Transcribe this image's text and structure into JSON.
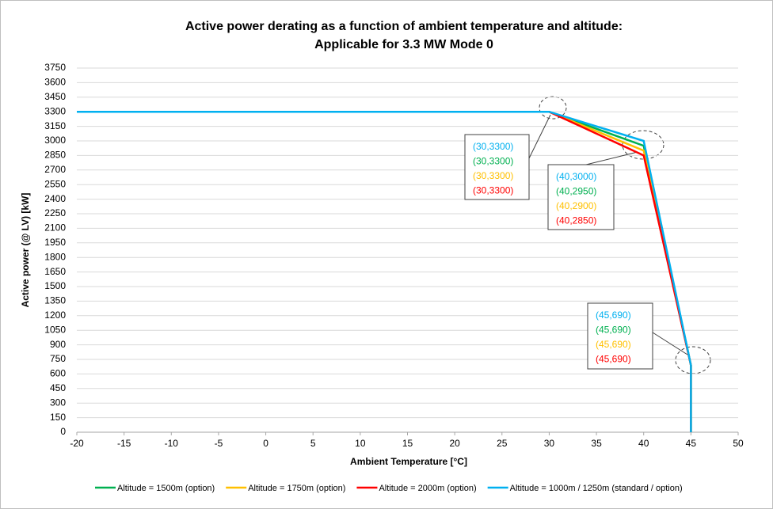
{
  "chart_data": {
    "type": "line",
    "title": [
      "Active power derating as a function of ambient temperature and altitude:",
      "Applicable for 3.3 MW Mode 0"
    ],
    "x_label": "Ambient Temperature [°C]",
    "y_label": "Active power (@ LV) [kW]",
    "xlim": [
      -20,
      50
    ],
    "xticks": [
      -20,
      -15,
      -10,
      -5,
      0,
      5,
      10,
      15,
      20,
      25,
      30,
      35,
      40,
      45,
      50
    ],
    "ylim": [
      0,
      3750
    ],
    "yticks": [
      0,
      150,
      300,
      450,
      600,
      750,
      900,
      1050,
      1200,
      1350,
      1500,
      1650,
      1800,
      1950,
      2100,
      2250,
      2400,
      2550,
      2700,
      2850,
      3000,
      3150,
      3300,
      3450,
      3600,
      3750
    ],
    "grid": true,
    "legend": "bottom",
    "series": [
      {
        "name": "Altitude = 1500m (option)",
        "color": "#00b050",
        "x": [
          -20,
          30,
          40,
          45,
          45
        ],
        "values": [
          3300,
          3300,
          2950,
          690,
          0
        ]
      },
      {
        "name": "Altitude = 1750m (option)",
        "color": "#ffc000",
        "x": [
          -20,
          30,
          40,
          45,
          45
        ],
        "values": [
          3300,
          3300,
          2900,
          690,
          0
        ]
      },
      {
        "name": "Altitude = 2000m (option)",
        "color": "#ff0000",
        "x": [
          -20,
          30,
          40,
          45,
          45
        ],
        "values": [
          3300,
          3300,
          2850,
          690,
          0
        ]
      },
      {
        "name": "Altitude = 1000m / 1250m (standard / option)",
        "color": "#00b0f0",
        "x": [
          -20,
          30,
          40,
          45,
          45
        ],
        "values": [
          3300,
          3300,
          3000,
          690,
          0
        ]
      }
    ],
    "annotations": [
      {
        "lines": [
          {
            "text": "(30,3300)",
            "color": "#00b0f0"
          },
          {
            "text": "(30,3300)",
            "color": "#00b050"
          },
          {
            "text": "(30,3300)",
            "color": "#ffc000"
          },
          {
            "text": "(30,3300)",
            "color": "#ff0000"
          }
        ]
      },
      {
        "lines": [
          {
            "text": "(40,3000)",
            "color": "#00b0f0"
          },
          {
            "text": "(40,2950)",
            "color": "#00b050"
          },
          {
            "text": "(40,2900)",
            "color": "#ffc000"
          },
          {
            "text": "(40,2850)",
            "color": "#ff0000"
          }
        ]
      },
      {
        "lines": [
          {
            "text": "(45,690)",
            "color": "#00b0f0"
          },
          {
            "text": "(45,690)",
            "color": "#00b050"
          },
          {
            "text": "(45,690)",
            "color": "#ffc000"
          },
          {
            "text": "(45,690)",
            "color": "#ff0000"
          }
        ]
      }
    ]
  }
}
